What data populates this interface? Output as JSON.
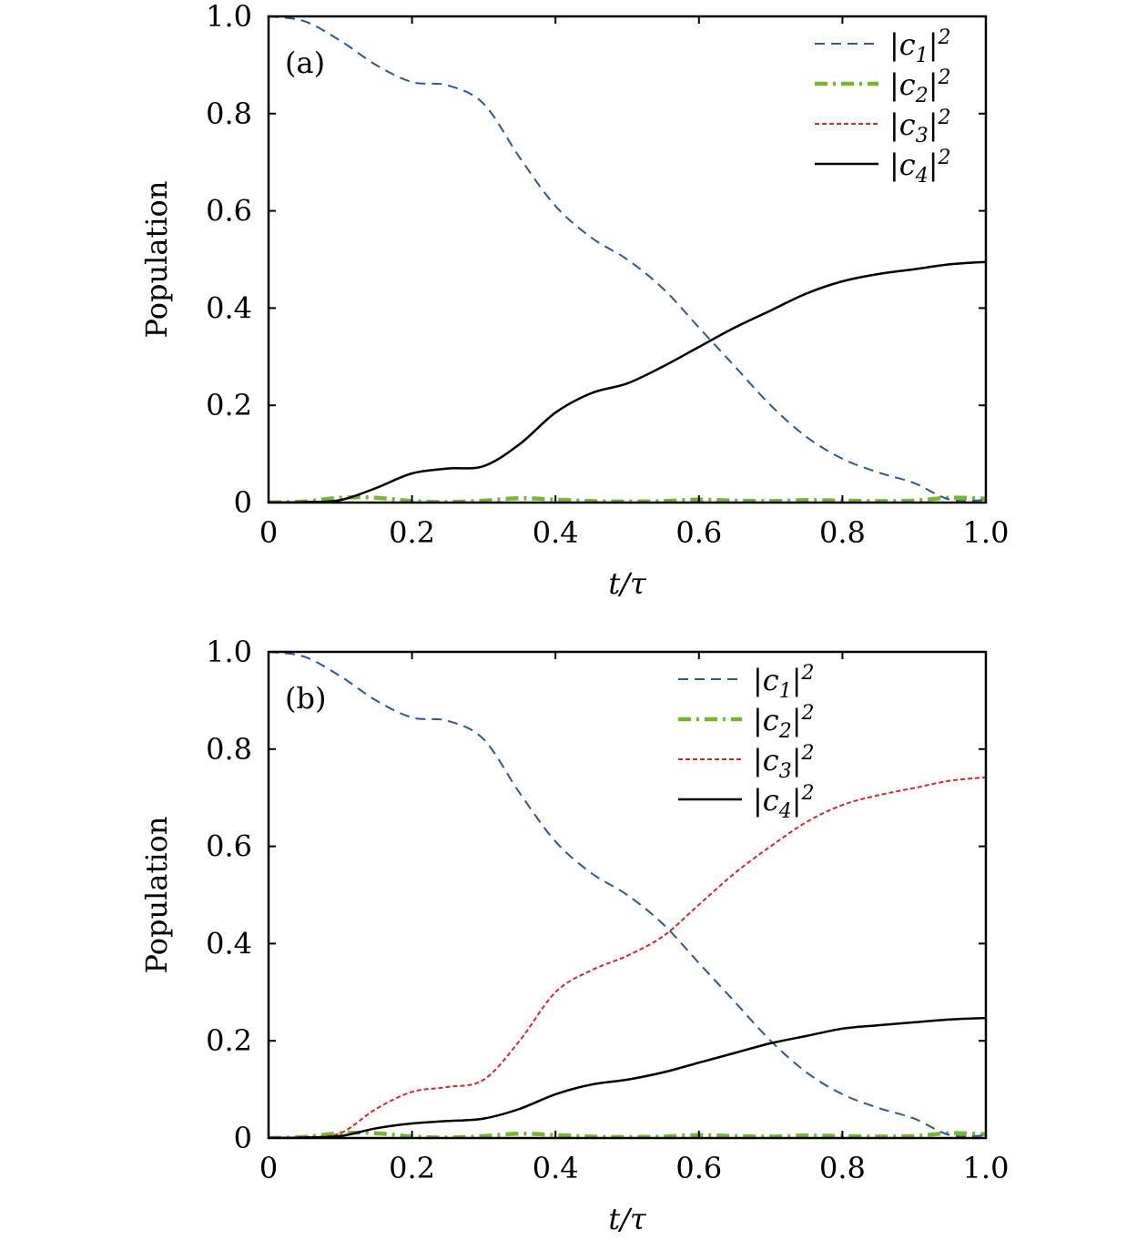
{
  "chart_data": [
    {
      "type": "line",
      "panel_label": "(a)",
      "xlabel": "t/τ",
      "ylabel": "Population",
      "xlim": [
        0,
        1.0
      ],
      "ylim": [
        0,
        1.0
      ],
      "xticks": [
        "0",
        "0.2",
        "0.4",
        "0.6",
        "0.8",
        "1.0"
      ],
      "yticks": [
        "0",
        "0.2",
        "0.4",
        "0.6",
        "0.8",
        "1.0"
      ],
      "legend_position": "top-right",
      "series": [
        {
          "name": "|c1|2",
          "color": "#2b5797",
          "style": "dashed",
          "x": [
            0,
            0.05,
            0.1,
            0.15,
            0.2,
            0.25,
            0.3,
            0.35,
            0.4,
            0.45,
            0.5,
            0.55,
            0.6,
            0.65,
            0.7,
            0.75,
            0.8,
            0.85,
            0.9,
            0.95,
            1.0
          ],
          "y": [
            1.0,
            0.99,
            0.95,
            0.9,
            0.865,
            0.858,
            0.82,
            0.71,
            0.61,
            0.545,
            0.5,
            0.44,
            0.36,
            0.28,
            0.2,
            0.135,
            0.09,
            0.062,
            0.04,
            0.006,
            0.005
          ]
        },
        {
          "name": "|c2|2",
          "color": "#77b82a",
          "style": "dash-dot",
          "x": [
            0,
            0.05,
            0.1,
            0.15,
            0.2,
            0.25,
            0.3,
            0.35,
            0.4,
            0.45,
            0.5,
            0.55,
            0.6,
            0.65,
            0.7,
            0.75,
            0.8,
            0.85,
            0.9,
            0.95,
            1.0
          ],
          "y": [
            0,
            0.002,
            0.01,
            0.01,
            0.003,
            0.001,
            0.004,
            0.009,
            0.006,
            0.003,
            0.002,
            0.003,
            0.006,
            0.004,
            0.003,
            0.005,
            0.004,
            0.003,
            0.004,
            0.01,
            0.008
          ]
        },
        {
          "name": "|c3|2",
          "color": "#d62728",
          "style": "dotted",
          "x": [
            0,
            0.05,
            0.1,
            0.15,
            0.2,
            0.25,
            0.3,
            0.35,
            0.4,
            0.45,
            0.5,
            0.55,
            0.6,
            0.65,
            0.7,
            0.75,
            0.8,
            0.85,
            0.9,
            0.95,
            1.0
          ],
          "y": [
            0,
            0.001,
            0.005,
            0.03,
            0.06,
            0.07,
            0.075,
            0.12,
            0.185,
            0.225,
            0.245,
            0.28,
            0.32,
            0.36,
            0.395,
            0.43,
            0.455,
            0.47,
            0.48,
            0.49,
            0.495
          ]
        },
        {
          "name": "|c4|2",
          "color": "#000000",
          "style": "solid",
          "x": [
            0,
            0.05,
            0.1,
            0.15,
            0.2,
            0.25,
            0.3,
            0.35,
            0.4,
            0.45,
            0.5,
            0.55,
            0.6,
            0.65,
            0.7,
            0.75,
            0.8,
            0.85,
            0.9,
            0.95,
            1.0
          ],
          "y": [
            0,
            0.001,
            0.005,
            0.03,
            0.06,
            0.07,
            0.075,
            0.12,
            0.185,
            0.225,
            0.245,
            0.28,
            0.32,
            0.36,
            0.395,
            0.43,
            0.455,
            0.47,
            0.48,
            0.49,
            0.495
          ]
        }
      ]
    },
    {
      "type": "line",
      "panel_label": "(b)",
      "xlabel": "t/τ",
      "ylabel": "Population",
      "xlim": [
        0,
        1.0
      ],
      "ylim": [
        0,
        1.0
      ],
      "xticks": [
        "0",
        "0.2",
        "0.4",
        "0.6",
        "0.8",
        "1.0"
      ],
      "yticks": [
        "0",
        "0.2",
        "0.4",
        "0.6",
        "0.8",
        "1.0"
      ],
      "legend_position": "top-right",
      "series": [
        {
          "name": "|c1|2",
          "color": "#2b5797",
          "style": "dashed",
          "x": [
            0,
            0.05,
            0.1,
            0.15,
            0.2,
            0.25,
            0.3,
            0.35,
            0.4,
            0.45,
            0.5,
            0.55,
            0.6,
            0.65,
            0.7,
            0.75,
            0.8,
            0.85,
            0.9,
            0.95,
            1.0
          ],
          "y": [
            1.0,
            0.99,
            0.95,
            0.9,
            0.865,
            0.858,
            0.82,
            0.71,
            0.61,
            0.545,
            0.5,
            0.44,
            0.36,
            0.28,
            0.2,
            0.135,
            0.09,
            0.062,
            0.04,
            0.006,
            0.005
          ]
        },
        {
          "name": "|c2|2",
          "color": "#77b82a",
          "style": "dash-dot",
          "x": [
            0,
            0.05,
            0.1,
            0.15,
            0.2,
            0.25,
            0.3,
            0.35,
            0.4,
            0.45,
            0.5,
            0.55,
            0.6,
            0.65,
            0.7,
            0.75,
            0.8,
            0.85,
            0.9,
            0.95,
            1.0
          ],
          "y": [
            0,
            0.002,
            0.01,
            0.01,
            0.003,
            0.001,
            0.004,
            0.009,
            0.006,
            0.003,
            0.002,
            0.003,
            0.006,
            0.004,
            0.003,
            0.005,
            0.004,
            0.003,
            0.004,
            0.01,
            0.008
          ]
        },
        {
          "name": "|c3|2",
          "color": "#d62728",
          "style": "dotted",
          "x": [
            0,
            0.05,
            0.1,
            0.15,
            0.2,
            0.25,
            0.3,
            0.35,
            0.4,
            0.45,
            0.5,
            0.55,
            0.6,
            0.65,
            0.7,
            0.75,
            0.8,
            0.85,
            0.9,
            0.95,
            1.0
          ],
          "y": [
            0,
            0.002,
            0.01,
            0.06,
            0.095,
            0.105,
            0.12,
            0.2,
            0.3,
            0.345,
            0.375,
            0.415,
            0.48,
            0.545,
            0.6,
            0.65,
            0.685,
            0.705,
            0.72,
            0.735,
            0.742
          ]
        },
        {
          "name": "|c4|2",
          "color": "#000000",
          "style": "solid",
          "x": [
            0,
            0.05,
            0.1,
            0.15,
            0.2,
            0.25,
            0.3,
            0.35,
            0.4,
            0.45,
            0.5,
            0.55,
            0.6,
            0.65,
            0.7,
            0.75,
            0.8,
            0.85,
            0.9,
            0.95,
            1.0
          ],
          "y": [
            0,
            0.001,
            0.004,
            0.02,
            0.03,
            0.035,
            0.04,
            0.06,
            0.09,
            0.11,
            0.12,
            0.135,
            0.155,
            0.175,
            0.195,
            0.21,
            0.225,
            0.232,
            0.238,
            0.244,
            0.247
          ]
        }
      ]
    }
  ]
}
